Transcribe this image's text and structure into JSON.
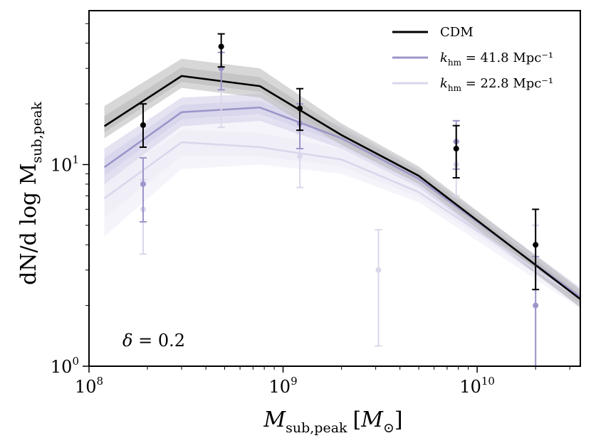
{
  "chart_data": {
    "type": "line",
    "x_scale": "log",
    "y_scale": "log",
    "xlim": [
      100000000.0,
      34000000000.0
    ],
    "ylim": [
      1.0,
      58
    ],
    "xlabel": {
      "main": "M",
      "sub": "sub,peak",
      "unit_open": "[",
      "unit": "M",
      "unit_sub": "⊙",
      "unit_close": "]"
    },
    "ylabel": {
      "prefix": "dN/d log M",
      "sub": "sub,peak"
    },
    "x_ticks": [
      {
        "value": 100000000.0,
        "base": "10",
        "exp": "8"
      },
      {
        "value": 1000000000.0,
        "base": "10",
        "exp": "9"
      },
      {
        "value": 10000000000.0,
        "base": "10",
        "exp": "10"
      }
    ],
    "y_ticks": [
      {
        "value": 1,
        "base": "10",
        "exp": "0"
      },
      {
        "value": 10,
        "base": "10",
        "exp": "1"
      }
    ],
    "annotation": {
      "symbol": "δ",
      "text": " = 0.2"
    },
    "series": [
      {
        "name": "CDM",
        "legend_symbol": "",
        "legend_sub": "",
        "legend_rest": "CDM",
        "color": "#000000",
        "band_color": "#bdbdbd",
        "line_x": [
          120000000.0,
          300000000.0,
          760000000.0,
          2000000000.0,
          5000000000.0,
          34000000000.0
        ],
        "line_y": [
          15.5,
          27.5,
          24.5,
          14.0,
          8.8,
          2.15
        ],
        "band_low": [
          13.5,
          24.0,
          21.5,
          12.5,
          8.0,
          1.95
        ],
        "band_high": [
          19.5,
          33.5,
          30.0,
          16.0,
          9.8,
          2.4
        ],
        "points": [
          {
            "x": 190000000.0,
            "y": 15.7,
            "ylo": 12.2,
            "yhi": 20.0
          },
          {
            "x": 480000000.0,
            "y": 38.5,
            "ylo": 30.5,
            "yhi": 44.5
          },
          {
            "x": 1220000000.0,
            "y": 19.0,
            "ylo": 14.8,
            "yhi": 23.8
          },
          {
            "x": 7800000000.0,
            "y": 12.0,
            "ylo": 8.6,
            "yhi": 15.6
          },
          {
            "x": 20000000000.0,
            "y": 4.0,
            "ylo": 2.4,
            "yhi": 6.0
          }
        ]
      },
      {
        "name": "k_hm = 41.8 Mpc^-1",
        "legend_symbol": "k",
        "legend_sub": "hm",
        "legend_rest": " = 41.8 Mpc⁻¹",
        "color": "#9c95c9",
        "band_color": "#d4d1ea",
        "line_x": [
          120000000.0,
          300000000.0,
          760000000.0,
          2000000000.0,
          5000000000.0,
          34000000000.0
        ],
        "line_y": [
          9.7,
          18.2,
          19.2,
          13.5,
          8.5,
          2.2
        ],
        "band_low": [
          8.0,
          15.5,
          16.5,
          12.0,
          7.7,
          1.97
        ],
        "band_high": [
          12.0,
          21.5,
          22.5,
          15.5,
          9.5,
          2.45
        ],
        "points": [
          {
            "x": 190000000.0,
            "y": 8.0,
            "ylo": 5.2,
            "yhi": 10.8
          },
          {
            "x": 480000000.0,
            "y": 30.0,
            "ylo": 23.5,
            "yhi": 36.0
          },
          {
            "x": 1220000000.0,
            "y": 16.0,
            "ylo": 12.0,
            "yhi": 20.0
          },
          {
            "x": 7800000000.0,
            "y": 13.0,
            "ylo": 9.5,
            "yhi": 16.5
          },
          {
            "x": 20000000000.0,
            "y": 2.0,
            "ylo": 0.3,
            "yhi": 3.5
          }
        ]
      },
      {
        "name": "k_hm = 22.8 Mpc^-1",
        "legend_symbol": "k",
        "legend_sub": "hm",
        "legend_rest": " = 22.8 Mpc⁻¹",
        "color": "#dad7eb",
        "band_color": "#eeedf6",
        "line_x": [
          120000000.0,
          300000000.0,
          760000000.0,
          2000000000.0,
          5000000000.0,
          34000000000.0
        ],
        "line_y": [
          6.8,
          12.9,
          12.2,
          10.6,
          7.3,
          2.15
        ],
        "band_low": [
          4.4,
          9.5,
          10.0,
          9.0,
          6.5,
          1.93
        ],
        "band_high": [
          9.8,
          17.0,
          17.0,
          13.5,
          8.5,
          2.4
        ],
        "points": [
          {
            "x": 190000000.0,
            "y": 6.0,
            "ylo": 3.6,
            "yhi": 8.4
          },
          {
            "x": 480000000.0,
            "y": 19.5,
            "ylo": 15.3,
            "yhi": 24.0
          },
          {
            "x": 1220000000.0,
            "y": 11.0,
            "ylo": 7.7,
            "yhi": 14.3
          },
          {
            "x": 3100000000.0,
            "y": 3.0,
            "ylo": 1.26,
            "yhi": 4.75
          },
          {
            "x": 7800000000.0,
            "y": 10.0,
            "ylo": 7.0,
            "yhi": 13.0
          },
          {
            "x": 20000000000.0,
            "y": 3.0,
            "ylo": 0.3,
            "yhi": 5.0
          }
        ]
      }
    ]
  }
}
